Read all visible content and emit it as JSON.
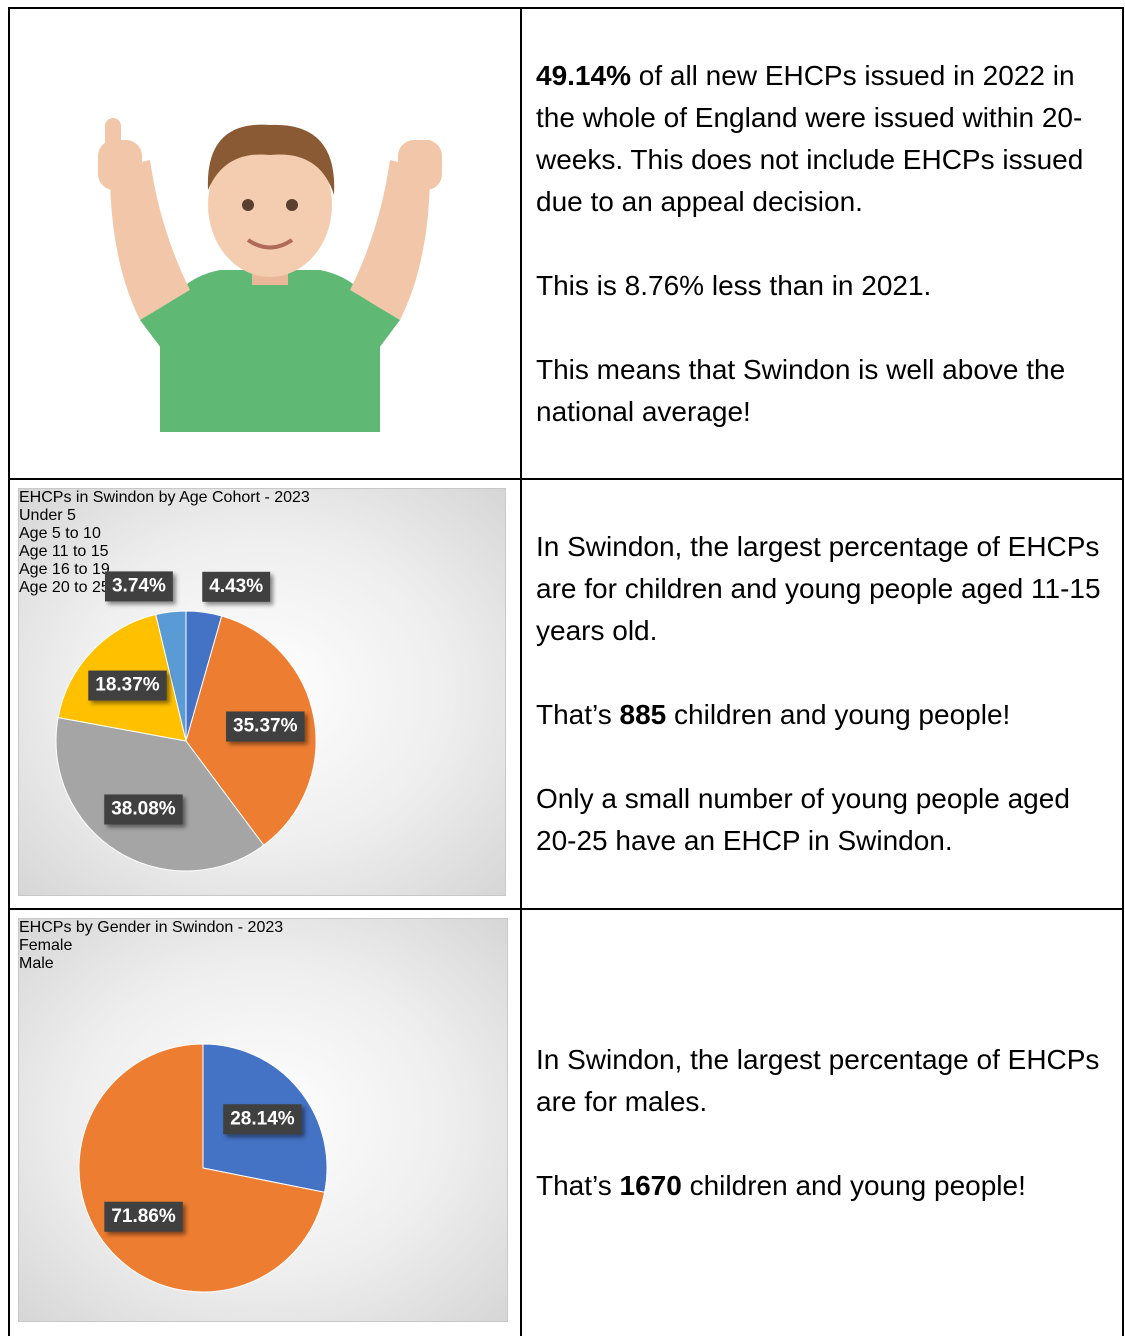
{
  "rows": [
    {
      "paragraphs": [
        [
          {
            "bold": "49.14%"
          },
          {
            "text": " of all new EHCPs issued in 2022 in the whole of England were issued within 20-weeks. This does not include EHCPs issued due to an appeal decision."
          }
        ],
        [
          {
            "text": "This is 8.76% less than in 2021."
          }
        ],
        [
          {
            "text": "This means that Swindon is well above the national average!"
          }
        ]
      ]
    },
    {
      "paragraphs": [
        [
          {
            "text": "In Swindon, the largest percentage of EHCPs are for children and young people aged 11-15 years old."
          }
        ],
        [
          {
            "text": "That’s "
          },
          {
            "bold": "885"
          },
          {
            "text": " children and young people!"
          }
        ],
        [
          {
            "text": "Only a small number of young people aged 20-25 have an EHCP in Swindon."
          }
        ]
      ]
    },
    {
      "paragraphs": [
        [
          {
            "text": "In Swindon, the largest percentage of EHCPs are for males."
          }
        ],
        [
          {
            "text": "That’s "
          },
          {
            "bold": "1670"
          },
          {
            "text": " children and young people!"
          }
        ]
      ]
    }
  ],
  "chart_data": [
    {
      "type": "pie",
      "title": "EHCPs in Swindon by Age Cohort - 2023",
      "categories": [
        "Under 5",
        "Age 5 to 10",
        "Age 11 to 15",
        "Age 16 to 19",
        "Age 20 to 25"
      ],
      "values": [
        4.43,
        35.37,
        38.08,
        18.37,
        3.74
      ],
      "value_labels": [
        "4.43%",
        "35.37%",
        "38.08%",
        "18.37%",
        "3.74%"
      ],
      "colors": [
        "#4472c4",
        "#ed7d31",
        "#a5a5a5",
        "#ffc000",
        "#5b9bd5"
      ],
      "legend": "right"
    },
    {
      "type": "pie",
      "title": "EHCPs by Gender in Swindon - 2023",
      "categories": [
        "Female",
        "Male"
      ],
      "values": [
        28.14,
        71.86
      ],
      "value_labels": [
        "28.14%",
        "71.86%"
      ],
      "colors": [
        "#4472c4",
        "#ed7d31"
      ],
      "legend": "right"
    }
  ]
}
